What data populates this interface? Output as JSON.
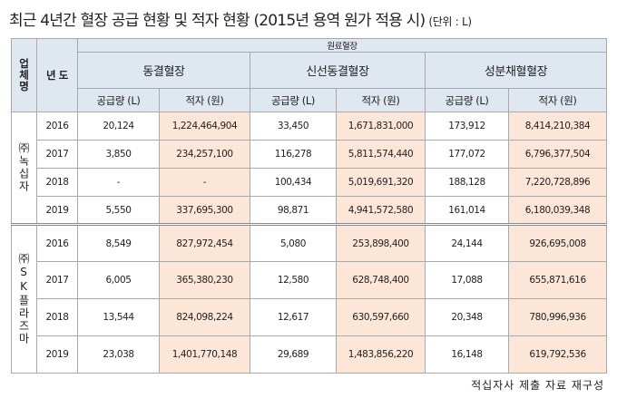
{
  "title": "최근 4년간 혈장 공급 현황 및 적자 현황 (2015년 용역 원가 적용 시)",
  "unit": "(단위 : L)",
  "table": {
    "top_header": "원료혈장",
    "col_company": "업체명",
    "col_year": "년 도",
    "groups": [
      {
        "name": "동결혈장",
        "supply_label": "공급량 (L)",
        "deficit_label": "적자 (원)"
      },
      {
        "name": "신선동결혈장",
        "supply_label": "공급량 (L)",
        "deficit_label": "적자 (원)"
      },
      {
        "name": "성분채혈혈장",
        "supply_label": "공급량 (L)",
        "deficit_label": "적자 (원)"
      }
    ],
    "companies": [
      {
        "name": "㈜녹십자",
        "rows": [
          [
            "2016",
            "20,124",
            "1,224,464,904",
            "33,450",
            "1,671,831,000",
            "173,912",
            "8,414,210,384"
          ],
          [
            "2017",
            "3,850",
            "234,257,100",
            "116,278",
            "5,811,574,440",
            "177,072",
            "6,796,377,504"
          ],
          [
            "2018",
            "-",
            "-",
            "100,434",
            "5,019,691,320",
            "188,128",
            "7,220,728,896"
          ],
          [
            "2019",
            "5,550",
            "337,695,300",
            "98,871",
            "4,941,572,580",
            "161,014",
            "6,180,039,348"
          ]
        ]
      },
      {
        "name": "㈜SK플라즈마",
        "rows": [
          [
            "2016",
            "8,549",
            "827,972,454",
            "5,080",
            "253,898,400",
            "24,144",
            "926,695,008"
          ],
          [
            "2017",
            "6,005",
            "365,380,230",
            "12,580",
            "628,748,400",
            "17,088",
            "655,871,616"
          ],
          [
            "2018",
            "13,544",
            "824,098,224",
            "12,617",
            "630,597,660",
            "20,348",
            "780,996,936"
          ],
          [
            "2019",
            "23,038",
            "1,401,770,148",
            "29,689",
            "1,483,856,220",
            "16,148",
            "619,792,536"
          ]
        ]
      }
    ]
  },
  "source": "적십자사 제출 자료 재구성"
}
